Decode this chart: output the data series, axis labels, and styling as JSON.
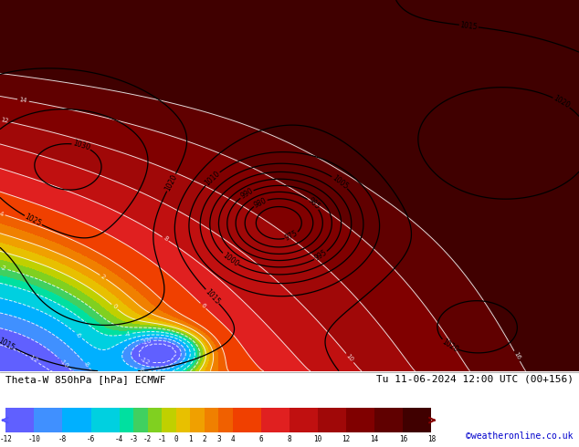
{
  "title_left": "Theta-W 850hPa [hPa] ECMWF",
  "title_right": "Tu 11-06-2024 12:00 UTC (00+156)",
  "credit": "©weatheronline.co.uk",
  "colorbar_levels": [
    -12,
    -10,
    -8,
    -6,
    -4,
    -3,
    -2,
    -1,
    0,
    1,
    2,
    3,
    4,
    6,
    8,
    10,
    12,
    14,
    16,
    18
  ],
  "colorbar_colors": [
    "#6060ff",
    "#4090ff",
    "#00b0ff",
    "#00d0e0",
    "#00e0a0",
    "#40d060",
    "#80d020",
    "#c0d000",
    "#e8c000",
    "#f0a000",
    "#f08000",
    "#f06000",
    "#f04000",
    "#e02020",
    "#c01010",
    "#a00808",
    "#800000",
    "#600000",
    "#400000"
  ],
  "fig_width": 6.34,
  "fig_height": 4.9,
  "dpi": 100
}
